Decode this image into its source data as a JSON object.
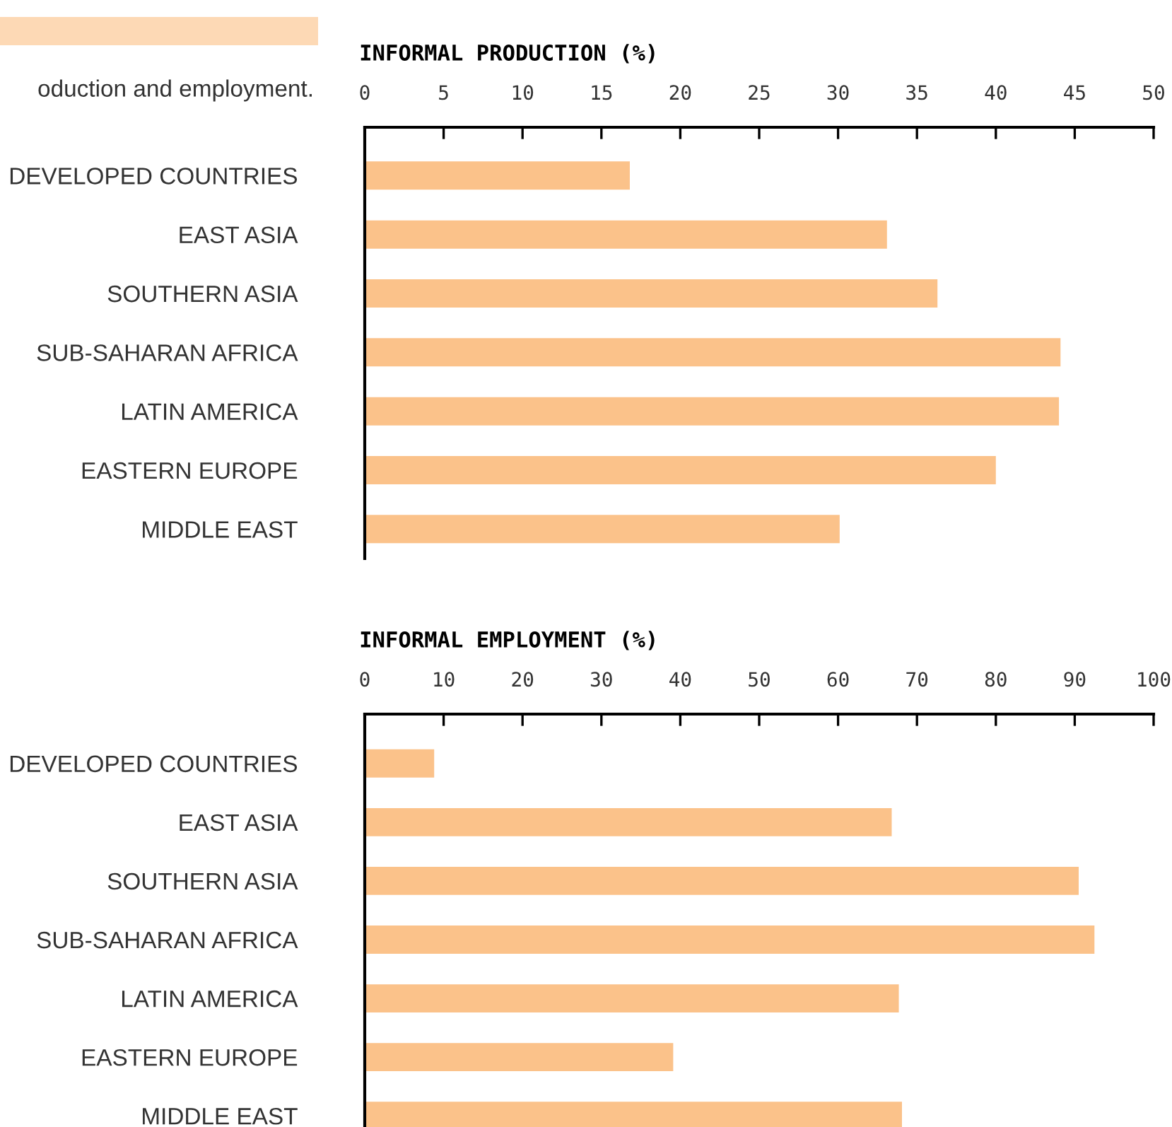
{
  "chart_data": [
    {
      "type": "bar",
      "orientation": "horizontal",
      "title": "INFORMAL PRODUCTION (%)",
      "annotations": [
        "oduction and employment."
      ],
      "categories": [
        "DEVELOPED COUNTRIES",
        "EAST ASIA",
        "SOUTHERN ASIA",
        "SUB-SAHARAN AFRICA",
        "LATIN AMERICA",
        "EASTERN EUROPE",
        "MIDDLE EAST"
      ],
      "values": [
        16.8,
        33.1,
        36.3,
        44.1,
        44.0,
        40.0,
        30.1
      ],
      "color": "#fbc28a",
      "xlim": [
        0,
        50
      ],
      "xticks": [
        0,
        5,
        10,
        15,
        20,
        25,
        30,
        35,
        40,
        45,
        50
      ],
      "grid": false,
      "legend": false
    },
    {
      "type": "bar",
      "orientation": "horizontal",
      "title": "INFORMAL EMPLOYMENT (%)",
      "categories": [
        "DEVELOPED COUNTRIES",
        "EAST ASIA",
        "SOUTHERN ASIA",
        "SUB-SAHARAN AFRICA",
        "LATIN AMERICA",
        "EASTERN EUROPE",
        "MIDDLE EAST"
      ],
      "values": [
        8.8,
        66.8,
        90.5,
        92.5,
        67.7,
        39.1,
        68.1
      ],
      "color": "#fbc28a",
      "xlim": [
        0,
        100
      ],
      "xticks": [
        0,
        10,
        20,
        30,
        40,
        50,
        60,
        70,
        80,
        90,
        100
      ],
      "grid": false,
      "legend": false
    }
  ]
}
